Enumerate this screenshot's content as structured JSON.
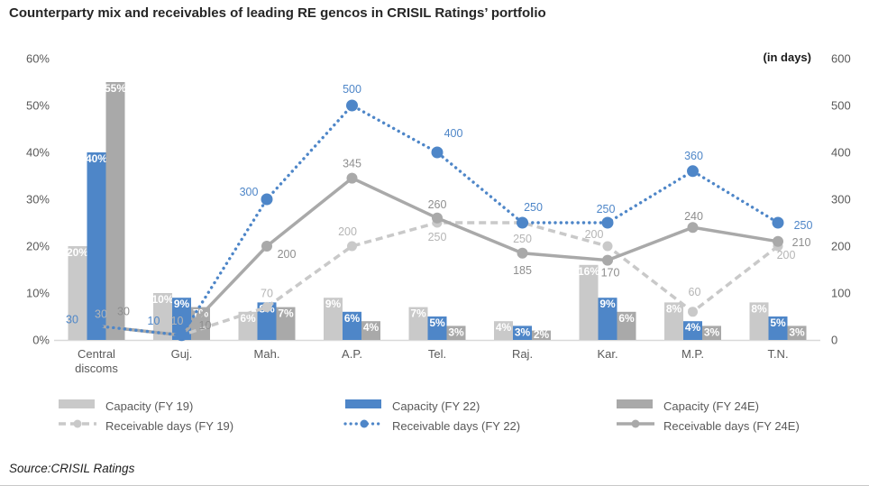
{
  "title": "Counterparty mix and receivables of leading RE gencos in CRISIL Ratings’ portfolio",
  "source": "Source:CRISIL Ratings",
  "colors": {
    "fy19": "#C9C9C9",
    "fy22": "#4E86C8",
    "fy24e": "#A9A9A9",
    "fy19_label": "#B5B5B5",
    "fy22_label": "#4E86C8",
    "fy24e_label": "#8E8E8E",
    "axis_text": "#595959",
    "baseline": "#D9D9D9",
    "bar_value_text": "#FFFFFF",
    "title_text": "#262626"
  },
  "chart_data": {
    "type": "combo bar+line (dual axis)",
    "categories": [
      "Central discoms",
      "Guj.",
      "Mah.",
      "A.P.",
      "Tel.",
      "Raj.",
      "Kar.",
      "M.P.",
      "T.N."
    ],
    "left_axis": {
      "unit": "%",
      "min": 0,
      "max": 60,
      "step": 10,
      "ticks": [
        "0%",
        "10%",
        "20%",
        "30%",
        "40%",
        "50%",
        "60%"
      ]
    },
    "right_axis": {
      "title": "(in days)",
      "min": 0,
      "max": 600,
      "step": 100,
      "ticks": [
        "0",
        "100",
        "200",
        "300",
        "400",
        "500",
        "600"
      ]
    },
    "grid": false,
    "legend_position": "bottom",
    "bar_series": [
      {
        "name": "Capacity (FY 19)",
        "color_key": "fy19",
        "unit": "%",
        "values": [
          20,
          10,
          6,
          9,
          7,
          4,
          16,
          8,
          8
        ]
      },
      {
        "name": "Capacity (FY 22)",
        "color_key": "fy22",
        "unit": "%",
        "values": [
          40,
          9,
          8,
          6,
          5,
          3,
          9,
          4,
          5
        ]
      },
      {
        "name": "Capacity (FY 24E)",
        "color_key": "fy24e",
        "unit": "%",
        "values": [
          55,
          7,
          7,
          4,
          3,
          2,
          6,
          3,
          3
        ]
      }
    ],
    "line_series": [
      {
        "name": "Receivable days (FY 19)",
        "style": "dashed",
        "color_key": "fy19",
        "label_color_key": "fy19_label",
        "values": [
          30,
          10,
          70,
          200,
          250,
          250,
          200,
          60,
          200
        ]
      },
      {
        "name": "Receivable days (FY 22)",
        "style": "dotted",
        "color_key": "fy22",
        "label_color_key": "fy22_label",
        "values": [
          30,
          10,
          300,
          500,
          400,
          250,
          250,
          360,
          250
        ]
      },
      {
        "name": "Receivable days (FY 24E)",
        "style": "solid",
        "color_key": "fy24e",
        "label_color_key": "fy24e_label",
        "values": [
          30,
          10,
          200,
          345,
          260,
          185,
          170,
          240,
          210
        ]
      }
    ]
  },
  "legend": {
    "rows": [
      [
        "Capacity (FY 19)",
        "Capacity (FY 22)",
        "Capacity (FY 24E)"
      ],
      [
        "Receivable days (FY 19)",
        "Receivable days (FY 22)",
        "Receivable days (FY 24E)"
      ]
    ]
  }
}
